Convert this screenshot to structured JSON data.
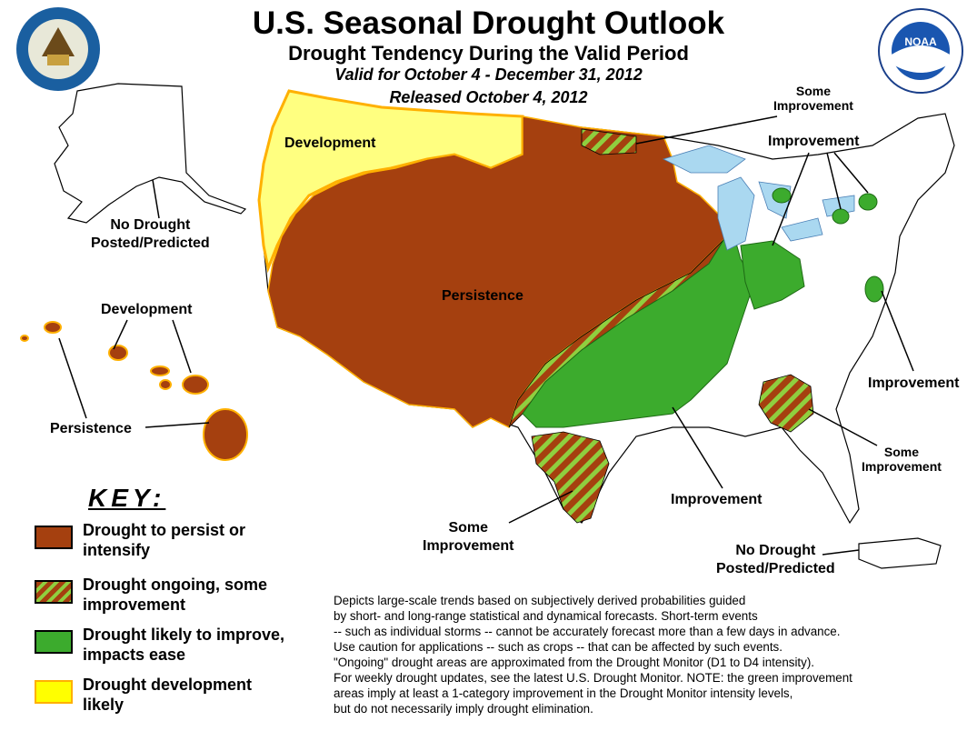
{
  "title": "U.S. Seasonal Drought Outlook",
  "subtitle": "Drought Tendency During the Valid Period",
  "valid": "Valid for October 4 - December 31, 2012",
  "released": "Released October 4, 2012",
  "logos": {
    "commerce": "department-of-commerce-seal",
    "noaa": "noaa-logo"
  },
  "colors": {
    "persist": "#a5400f",
    "improve_some": "#a5400f",
    "improve_stripe": "#8fcf3f",
    "improve": "#3cab2d",
    "develop": "#ffff80",
    "develop_border": "#ffb000",
    "lakes": "#aad8f0"
  },
  "labels": {
    "development_west": "Development",
    "no_drought_ak_1": "No Drought",
    "no_drought_ak_2": "Posted/Predicted",
    "development_hi": "Development",
    "persistence_hi": "Persistence",
    "persistence_west": "Persistence",
    "some_improvement_n_1": "Some",
    "some_improvement_n_2": "Improvement",
    "improvement_ne": "Improvement",
    "improvement_e": "Improvement",
    "some_improvement_se_1": "Some",
    "some_improvement_se_2": "Improvement",
    "improvement_south": "Improvement",
    "some_improvement_tx_1": "Some",
    "some_improvement_tx_2": "Improvement",
    "no_drought_pr_1": "No Drought",
    "no_drought_pr_2": "Posted/Predicted"
  },
  "key": {
    "heading": "KEY:",
    "items": [
      {
        "line1": "Drought to persist or",
        "line2": "intensify"
      },
      {
        "line1": "Drought ongoing, some",
        "line2": "improvement"
      },
      {
        "line1": "Drought likely to improve,",
        "line2": "impacts ease"
      },
      {
        "line1": "Drought development",
        "line2": "likely"
      }
    ]
  },
  "notes": [
    "Depicts large-scale trends based on subjectively derived probabilities guided",
    "by short- and long-range statistical and dynamical forecasts. Short-term events",
    "-- such as individual storms -- cannot be accurately forecast more than a few days in advance.",
    "Use caution for applications -- such as crops -- that can be affected by such events.",
    "\"Ongoing\" drought areas are approximated from the Drought Monitor (D1 to D4 intensity).",
    "For weekly drought updates, see the latest U.S. Drought Monitor. NOTE: the green improvement",
    "areas imply at least a 1-category improvement in the Drought Monitor intensity levels,",
    "but do not necessarily imply drought elimination."
  ]
}
